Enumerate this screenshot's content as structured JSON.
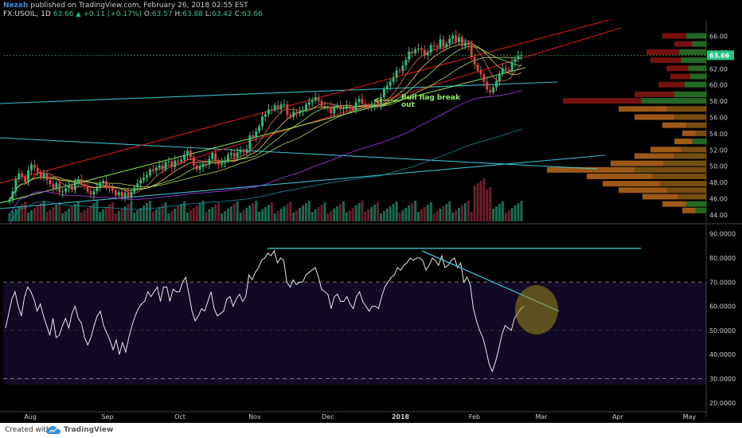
{
  "header": {
    "author": "Nezah",
    "published": "published on TradingView.com, February 26, 2018 02:55 EST",
    "symbol": "FX:USOIL, 1D",
    "last": "63.66",
    "change": "+0.11 (+0.17%)",
    "o_label": "O:",
    "o": "63.57",
    "h_label": "H:",
    "h": "63.88",
    "l_label": "L:",
    "l": "63.42",
    "c_label": "C:",
    "c": "63.66"
  },
  "footer": {
    "created_with": "Created with",
    "brand": "TradingView"
  },
  "colors": {
    "up": "#26c281",
    "down": "#e04545",
    "cyan": "#3fd0e0",
    "red_line": "#e82020",
    "green_line": "#8ff05a",
    "purple": "#b040ff",
    "vol_up": "#1e8f6c",
    "vol_down": "#8a2a3a",
    "rsi": "#e8e8e8",
    "circle": "#9a8a1a"
  },
  "chart_data": [
    {
      "type": "line",
      "title": "",
      "subtitle": "",
      "x_ticks": [
        "Aug",
        "Sep",
        "Oct",
        "Nov",
        "Dec",
        "2018",
        "Feb",
        "Mar",
        "Apr",
        "May"
      ],
      "y_ticks": [
        "66.00",
        "64.00",
        "62.00",
        "60.00",
        "58.00",
        "56.00",
        "54.00",
        "52.00",
        "50.00",
        "48.00",
        "46.00",
        "44.00"
      ],
      "ylim": [
        43.5,
        67.5
      ],
      "last_price_label": "63.66",
      "annotation": "Bull flag break out",
      "series": [
        {
          "values": [
            45.9,
            46.9,
            48.4,
            49.1,
            48.7,
            48.0,
            49.5,
            50.2,
            49.8,
            49.3,
            48.6,
            49.1,
            48.3,
            47.8,
            47.2,
            47.9,
            46.8,
            46.9,
            47.3,
            47.6,
            47.1,
            48.0,
            48.4,
            47.8,
            47.6,
            46.9,
            46.5,
            46.9,
            47.4,
            47.9,
            48.2,
            47.6,
            47.3,
            47.0,
            46.4,
            46.8,
            46.2,
            46.7,
            46.2,
            46.8,
            47.4,
            47.9,
            48.3,
            48.6,
            48.9,
            49.6,
            49.5,
            49.8,
            50.1,
            49.6,
            50.5,
            50.6,
            49.9,
            50.7,
            50.6,
            50.8,
            51.4,
            51.9,
            51.1,
            50.1,
            49.6,
            49.9,
            50.3,
            50.2,
            50.9,
            51.6,
            50.6,
            50.2,
            50.4,
            50.7,
            51.4,
            51.6,
            51.1,
            51.7,
            52.0,
            51.7,
            52.1,
            53.8,
            53.5,
            54.3,
            54.9,
            56.1,
            56.4,
            57.0,
            56.9,
            57.5,
            57.0,
            57.6,
            57.6,
            56.3,
            56.1,
            56.7,
            56.5,
            56.7,
            56.9,
            57.6,
            57.9,
            58.1,
            58.5,
            58.0,
            57.4,
            57.4,
            57.3,
            56.5,
            57.3,
            57.5,
            57.0,
            57.1,
            57.5,
            57.1,
            56.9,
            57.9,
            58.3,
            57.7,
            57.5,
            57.2,
            57.5,
            57.6,
            57.5,
            58.5,
            59.5,
            59.9,
            60.4,
            60.9,
            61.8,
            61.7,
            62.4,
            63.1,
            64.1,
            63.9,
            64.4,
            64.5,
            64.3,
            63.6,
            64.0,
            64.9,
            64.8,
            64.6,
            65.6,
            64.7,
            65.1,
            65.7,
            66.1,
            65.4,
            65.9,
            64.8,
            65.2,
            64.9,
            63.4,
            62.5,
            61.8,
            61.3,
            60.4,
            59.4,
            59.1,
            59.7,
            60.5,
            61.4,
            62.1,
            61.9,
            61.7,
            62.8,
            63.2,
            63.6,
            63.66
          ]
        }
      ]
    },
    {
      "type": "line",
      "title": "",
      "y_ticks": [
        "90.0000",
        "80.0000",
        "70.0000",
        "60.0000",
        "50.0000",
        "40.0000",
        "30.0000",
        "20.0000"
      ],
      "ylim": [
        18,
        92
      ],
      "overbought": 70,
      "oversold": 30,
      "series": [
        {
          "values": [
            51,
            57,
            63,
            66,
            60,
            56,
            64,
            68,
            66,
            63,
            58,
            61,
            56,
            52,
            48,
            55,
            47,
            48,
            52,
            55,
            51,
            57,
            60,
            55,
            53,
            47,
            44,
            47,
            52,
            56,
            58,
            52,
            49,
            46,
            42,
            46,
            40,
            45,
            41,
            47,
            52,
            56,
            59,
            61,
            62,
            66,
            64,
            66,
            68,
            62,
            68,
            68,
            62,
            67,
            66,
            66,
            70,
            72,
            65,
            58,
            54,
            56,
            59,
            58,
            62,
            66,
            59,
            56,
            57,
            58,
            63,
            64,
            60,
            63,
            65,
            62,
            64,
            73,
            71,
            74,
            76,
            79,
            80,
            82,
            81,
            83,
            78,
            80,
            79,
            70,
            68,
            71,
            69,
            70,
            70,
            73,
            74,
            75,
            76,
            72,
            67,
            66,
            65,
            59,
            64,
            65,
            62,
            62,
            64,
            61,
            59,
            64,
            66,
            62,
            60,
            58,
            60,
            60,
            59,
            64,
            68,
            70,
            72,
            73,
            76,
            75,
            77,
            78,
            80,
            79,
            80,
            80,
            79,
            75,
            77,
            80,
            79,
            77,
            81,
            76,
            77,
            79,
            80,
            76,
            78,
            70,
            72,
            69,
            59,
            54,
            50,
            47,
            42,
            36,
            33,
            37,
            42,
            48,
            52,
            51,
            50,
            55,
            57,
            59,
            60
          ]
        }
      ]
    }
  ]
}
